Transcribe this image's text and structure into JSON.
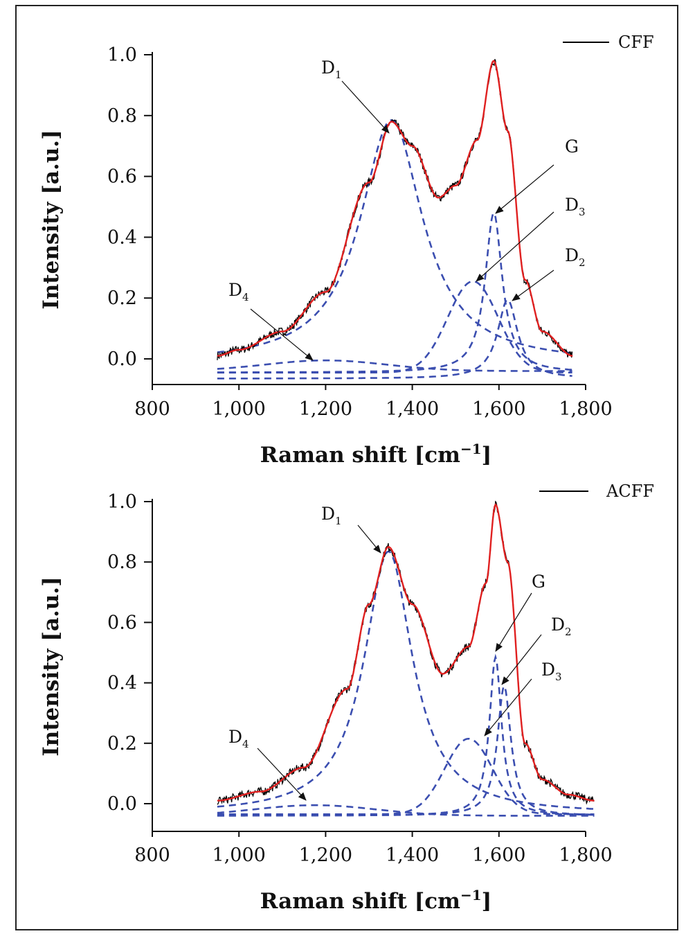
{
  "colors": {
    "raw": "#000000",
    "fit": "#e02020",
    "components": "#3b4eb0",
    "annotation": "#111111"
  },
  "chart_data": [
    {
      "type": "line",
      "title": "",
      "xlabel": "Raman shift [cm",
      "xlabel_sup": "−1",
      "xlabel_end": "]",
      "ylabel": "Intensity [a.u.]",
      "xlim": [
        800,
        1800
      ],
      "ylim": [
        -0.09,
        1.0
      ],
      "x_range_data": [
        950,
        1770
      ],
      "xticks": [
        800,
        1000,
        1200,
        1400,
        1600,
        1800
      ],
      "xtick_labels": [
        "800",
        "1,000",
        "1,200",
        "1,400",
        "1,600",
        "1,800"
      ],
      "yticks": [
        0.0,
        0.2,
        0.4,
        0.6,
        0.8,
        1.0
      ],
      "ytick_labels": [
        "0.0",
        "0.2",
        "0.4",
        "0.6",
        "0.8",
        "1.0"
      ],
      "legend": {
        "label": "CFF",
        "position": "top-right"
      },
      "series": [
        {
          "name": "CFF",
          "role": "raw"
        },
        {
          "role": "fit"
        },
        {
          "label": "D1",
          "role": "component",
          "shape": "lorentz",
          "center": 1352,
          "height": 0.8,
          "hwhm": 88
        },
        {
          "label": "G",
          "role": "component",
          "shape": "lorentz",
          "center": 1588,
          "height": 0.525,
          "hwhm": 24
        },
        {
          "label": "D3",
          "role": "component",
          "shape": "gauss",
          "center": 1540,
          "height": 0.3,
          "sigma": 58
        },
        {
          "label": "D2",
          "role": "component",
          "shape": "lorentz",
          "center": 1620,
          "height": 0.26,
          "hwhm": 28
        },
        {
          "label": "D4",
          "role": "component",
          "shape": "gauss",
          "center": 1200,
          "height": 0.035,
          "sigma": 140
        }
      ],
      "fit_points": [
        [
          950,
          0.01
        ],
        [
          1000,
          0.03
        ],
        [
          1100,
          0.09
        ],
        [
          1200,
          0.22
        ],
        [
          1300,
          0.58
        ],
        [
          1352,
          0.78
        ],
        [
          1400,
          0.7
        ],
        [
          1460,
          0.53
        ],
        [
          1500,
          0.57
        ],
        [
          1550,
          0.72
        ],
        [
          1588,
          0.98
        ],
        [
          1620,
          0.75
        ],
        [
          1660,
          0.26
        ],
        [
          1700,
          0.09
        ],
        [
          1770,
          0.01
        ]
      ],
      "annotations": [
        {
          "label": "D",
          "sub": "1"
        },
        {
          "label": "G",
          "sub": ""
        },
        {
          "label": "D",
          "sub": "3"
        },
        {
          "label": "D",
          "sub": "2"
        },
        {
          "label": "D",
          "sub": "4"
        }
      ]
    },
    {
      "type": "line",
      "title": "",
      "xlabel": "Raman shift [cm",
      "xlabel_sup": "−1",
      "xlabel_end": "]",
      "ylabel": "Intensity [a.u.]",
      "xlim": [
        800,
        1800
      ],
      "ylim": [
        -0.09,
        1.0
      ],
      "x_range_data": [
        950,
        1820
      ],
      "xticks": [
        800,
        1000,
        1200,
        1400,
        1600,
        1800
      ],
      "xtick_labels": [
        "800",
        "1,000",
        "1,200",
        "1,400",
        "1,600",
        "1,800"
      ],
      "yticks": [
        0.0,
        0.2,
        0.4,
        0.6,
        0.8,
        1.0
      ],
      "ytick_labels": [
        "0.0",
        "0.2",
        "0.4",
        "0.6",
        "0.8",
        "1.0"
      ],
      "legend": {
        "label": "ACFF",
        "position": "top-right"
      },
      "series": [
        {
          "name": "ACFF",
          "role": "raw"
        },
        {
          "role": "fit"
        },
        {
          "label": "D1",
          "role": "component",
          "shape": "lorentz",
          "center": 1345,
          "height": 0.87,
          "hwhm": 68
        },
        {
          "label": "G",
          "role": "component",
          "shape": "lorentz",
          "center": 1592,
          "height": 0.525,
          "hwhm": 17
        },
        {
          "label": "D2",
          "role": "component",
          "shape": "lorentz",
          "center": 1612,
          "height": 0.43,
          "hwhm": 19
        },
        {
          "label": "D3",
          "role": "component",
          "shape": "gauss",
          "center": 1530,
          "height": 0.25,
          "sigma": 55
        },
        {
          "label": "D4",
          "role": "component",
          "shape": "gauss",
          "center": 1175,
          "height": 0.035,
          "sigma": 140
        }
      ],
      "fit_points": [
        [
          950,
          0.01
        ],
        [
          1050,
          0.04
        ],
        [
          1150,
          0.12
        ],
        [
          1250,
          0.38
        ],
        [
          1300,
          0.66
        ],
        [
          1345,
          0.85
        ],
        [
          1400,
          0.66
        ],
        [
          1470,
          0.43
        ],
        [
          1530,
          0.52
        ],
        [
          1570,
          0.73
        ],
        [
          1592,
          0.99
        ],
        [
          1620,
          0.8
        ],
        [
          1660,
          0.2
        ],
        [
          1700,
          0.08
        ],
        [
          1760,
          0.03
        ],
        [
          1820,
          0.01
        ]
      ],
      "annotations": [
        {
          "label": "D",
          "sub": "1"
        },
        {
          "label": "G",
          "sub": ""
        },
        {
          "label": "D",
          "sub": "2"
        },
        {
          "label": "D",
          "sub": "3"
        },
        {
          "label": "D",
          "sub": "4"
        }
      ]
    }
  ]
}
